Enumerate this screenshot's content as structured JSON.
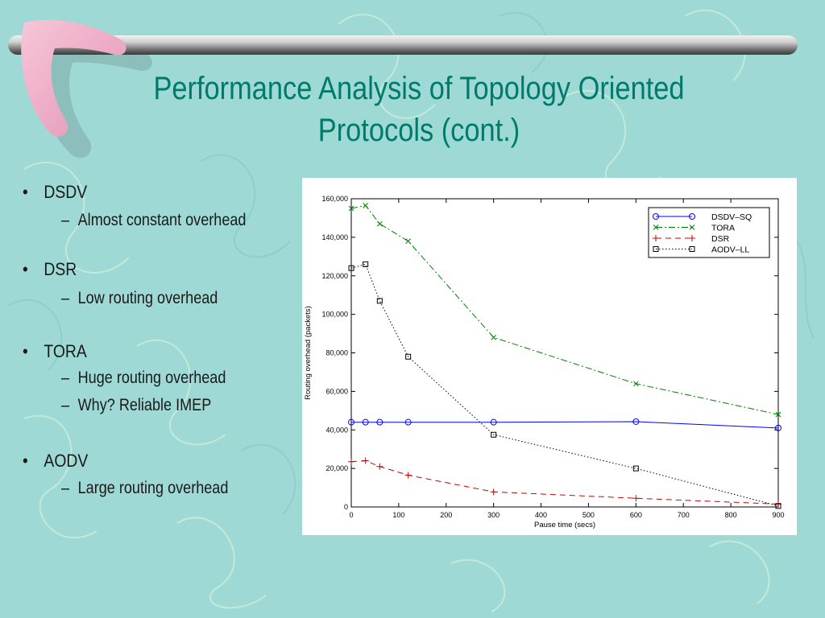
{
  "slide": {
    "title_line1": "Performance Analysis of Topology Oriented",
    "title_line2": "Protocols (cont.)",
    "bullets": [
      {
        "label": "DSDV",
        "subs": [
          "Almost constant overhead"
        ]
      },
      {
        "label": "DSR",
        "subs": [
          "Low routing overhead"
        ]
      },
      {
        "label": "TORA",
        "subs": [
          "Huge routing overhead",
          "Why? Reliable IMEP"
        ]
      },
      {
        "label": "AODV",
        "subs": [
          "Large routing overhead"
        ]
      }
    ],
    "bullet_char": "•",
    "dash_char": "–"
  },
  "colors": {
    "background": "#9ed9d6",
    "title": "#007a6a",
    "dsdv": "#0000ff",
    "tora": "#008000",
    "dsr": "#cc0000",
    "aodv": "#000000"
  },
  "chart_data": {
    "type": "line",
    "xlabel": "Pause time (secs)",
    "ylabel": "Routing overhead (packets)",
    "xlim": [
      0,
      900
    ],
    "ylim": [
      0,
      160000
    ],
    "xticks": [
      0,
      100,
      200,
      300,
      400,
      500,
      600,
      700,
      800,
      900
    ],
    "xtick_labels": [
      "0",
      "100",
      "200",
      "300",
      "400",
      "500",
      "600",
      "700",
      "800",
      "900"
    ],
    "yticks": [
      0,
      20000,
      40000,
      60000,
      80000,
      100000,
      120000,
      140000,
      160000
    ],
    "ytick_labels": [
      "0",
      "20,000",
      "40,000",
      "60,000",
      "80,000",
      "100,000",
      "120,000",
      "140,000",
      "160,000"
    ],
    "grid": false,
    "legend_position": "top-right",
    "series": [
      {
        "name": "DSDV–SQ",
        "color": "#0000ff",
        "marker": "circle",
        "dash": "solid",
        "x": [
          0,
          30,
          60,
          120,
          300,
          600,
          900
        ],
        "y": [
          44000,
          44000,
          44000,
          44000,
          44000,
          44300,
          41000
        ]
      },
      {
        "name": "TORA",
        "color": "#008000",
        "marker": "x",
        "dash": "dashdot",
        "x": [
          0,
          30,
          60,
          120,
          300,
          600,
          900
        ],
        "y": [
          155000,
          156500,
          147000,
          138000,
          88000,
          64000,
          48000
        ]
      },
      {
        "name": "DSR",
        "color": "#cc0000",
        "marker": "plus",
        "dash": "dashed",
        "x": [
          0,
          30,
          60,
          120,
          300,
          600,
          900
        ],
        "y": [
          23500,
          24000,
          21000,
          16500,
          7800,
          4500,
          1500
        ]
      },
      {
        "name": "AODV–LL",
        "color": "#000000",
        "marker": "square",
        "dash": "dotted",
        "x": [
          0,
          30,
          60,
          120,
          300,
          600,
          900
        ],
        "y": [
          124000,
          126000,
          107000,
          78000,
          37500,
          20000,
          500
        ]
      }
    ]
  }
}
